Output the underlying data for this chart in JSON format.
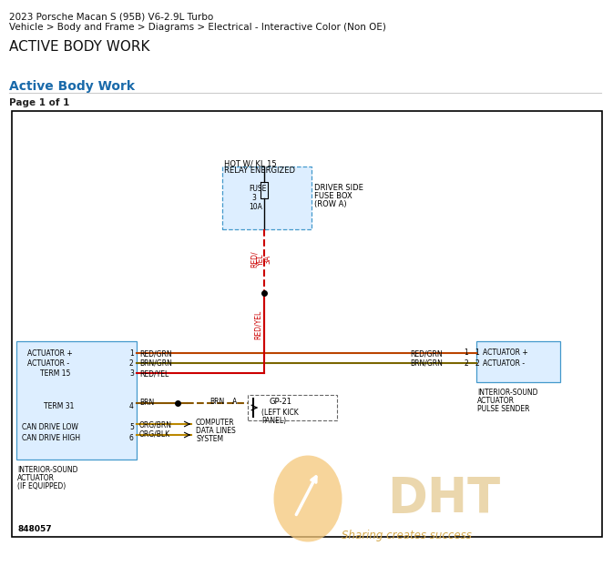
{
  "title_line1": "2023 Porsche Macan S (95B) V6-2.9L Turbo",
  "title_line2": "Vehicle > Body and Frame > Diagrams > Electrical - Interactive Color (Non OE)",
  "title_line3": "ACTIVE BODY WORK",
  "section_title": "Active Body Work",
  "page_info": "Page 1 of 1",
  "diagram_number": "848057",
  "watermark_text": "DHT",
  "watermark_subtext": "Sharing creates success",
  "bg_color": "#ffffff",
  "blue_title_color": "#1a6aaa",
  "fuse_box_color": "#ddeeff",
  "left_box_color": "#ddeeff",
  "right_box_color": "#ddeeff",
  "wire_red_yel": "#cc0000",
  "wire_red_grn": "#bb4400",
  "wire_brn_grn": "#7a6600",
  "wire_brn": "#885500",
  "wire_org": "#bb8800",
  "watermark_oval": "#f5c87a",
  "watermark_color": "#d4a84b",
  "separator_color": "#cccccc"
}
